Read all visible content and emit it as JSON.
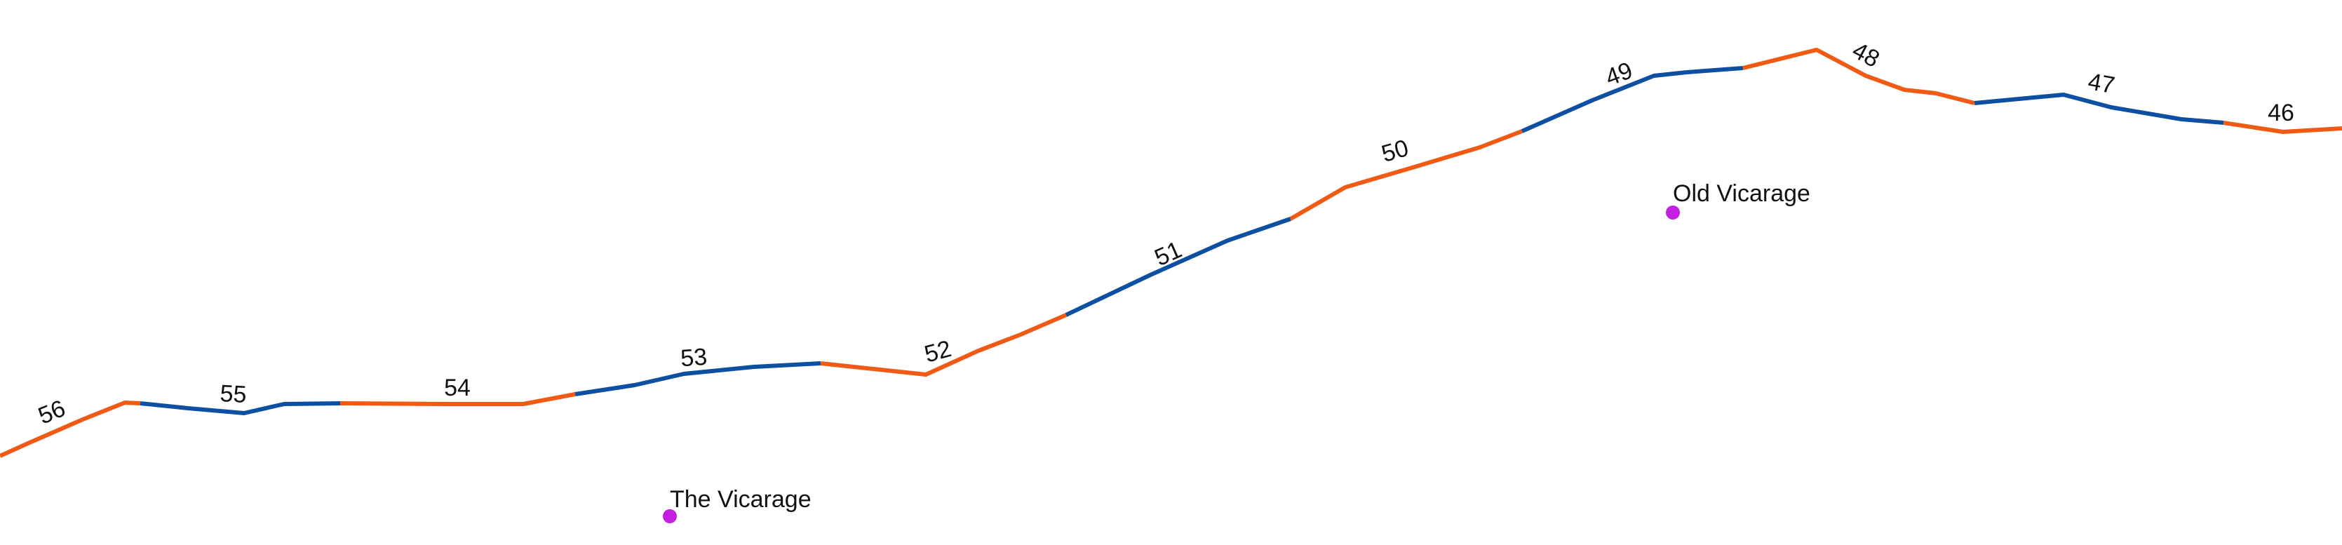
{
  "route": {
    "colors": {
      "primary": "#f05a14",
      "alternate": "#0d4fa1"
    },
    "markers": [
      {
        "label": "56"
      },
      {
        "label": "55"
      },
      {
        "label": "54"
      },
      {
        "label": "53"
      },
      {
        "label": "52"
      },
      {
        "label": "51"
      },
      {
        "label": "50"
      },
      {
        "label": "49"
      },
      {
        "label": "48"
      },
      {
        "label": "47"
      },
      {
        "label": "46"
      }
    ]
  },
  "places": [
    {
      "name": "The Vicarage",
      "color": "#c41ee0"
    },
    {
      "name": "Old Vicarage",
      "color": "#c41ee0"
    }
  ]
}
